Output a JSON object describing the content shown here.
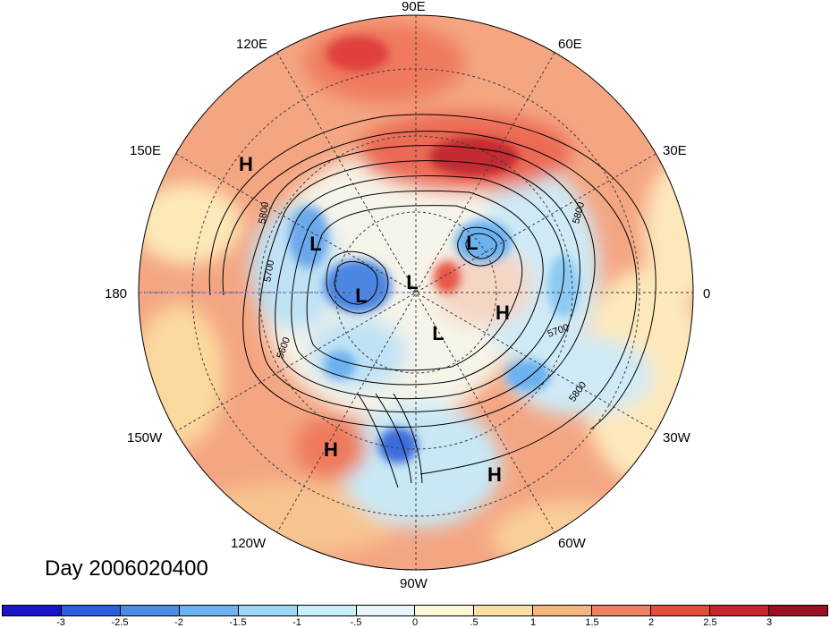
{
  "title": "Day 2006020400",
  "longitude_labels": {
    "top": "90E",
    "upper_right": "60E",
    "right_upper": "30E",
    "right": "0",
    "right_lower": "30W",
    "lower_right": "60W",
    "bottom": "90W",
    "lower_left": "120W",
    "left_lower": "150W",
    "left": "180",
    "left_upper": "150E",
    "upper_left": "120E"
  },
  "pressure_centers": [
    {
      "type": "H",
      "label": "H"
    },
    {
      "type": "L",
      "label": "L"
    },
    {
      "type": "L",
      "label": "L"
    },
    {
      "type": "L",
      "label": "L"
    },
    {
      "type": "L",
      "label": "L"
    },
    {
      "type": "L",
      "label": "L"
    },
    {
      "type": "H",
      "label": "H"
    },
    {
      "type": "H",
      "label": "H"
    },
    {
      "type": "H",
      "label": "H"
    }
  ],
  "contour_labels": [
    "5800",
    "5700",
    "5600",
    "5800",
    "5700",
    "5800"
  ],
  "colorbar": {
    "colors": [
      "#1a14c8",
      "#2c5ee0",
      "#4a8be8",
      "#6cb1f0",
      "#9ad8f6",
      "#c8eefa",
      "#e6f6fb",
      "#fdf7d6",
      "#fbe0a6",
      "#f6b57e",
      "#f08060",
      "#e44c3c",
      "#c8242c",
      "#9a1020"
    ],
    "tick_labels": [
      "-3",
      "-2.5",
      "-2",
      "-1.5",
      "-1",
      "-.5",
      "0",
      ".5",
      "1",
      "1.5",
      "2",
      "2.5",
      "3"
    ]
  },
  "colors": {
    "warm_field": "#f4a683",
    "cool_field": "#bde3f4",
    "strong_warm": "#d7303a",
    "strong_cool": "#2f6fd9",
    "contour": "#000000",
    "grid_line": "#3c3c3c"
  }
}
